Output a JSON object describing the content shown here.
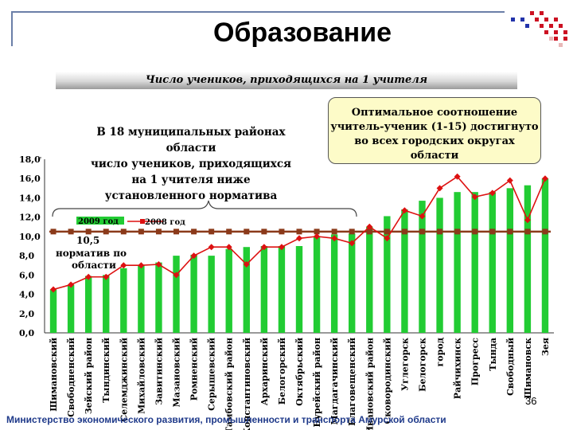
{
  "title": "Образование",
  "subtitle": "Число учеников, приходящихся на 1 учителя",
  "note_left": [
    "В 18 муниципальных районах области",
    "число учеников, приходящихся",
    "на 1 учителя ниже",
    "установленного норматива"
  ],
  "callout": [
    "Оптимальное соотношение",
    "учитель-ученик (1-15) достигнуто",
    "во всех городских округах области"
  ],
  "footer": "Министерство экономического развития, промышленности и транспорта Амурской области",
  "page_number": "36",
  "colors": {
    "bar": "#22cc33",
    "line": "#dd1111",
    "norm": "#8b3a1a",
    "callout_bg": "#fdfbc8",
    "footer": "#1f3a8a"
  },
  "chart_data": {
    "type": "bar",
    "ylim": [
      0,
      18
    ],
    "yticks": [
      "0,0",
      "2,0",
      "4,0",
      "6,0",
      "8,0",
      "10,0",
      "12,0",
      "14,0",
      "16,0",
      "18,0"
    ],
    "legend": {
      "bar_label": "2009 год",
      "line_label": "2008 год"
    },
    "norm": {
      "value": 10.5,
      "label_value": "10,5",
      "label_text": [
        "норматив по",
        "области"
      ]
    },
    "categories": [
      "Шимановский",
      "Свободненский",
      "Зейский район",
      "Тындинский",
      "Селемджинский",
      "Михайловский",
      "Завитинский",
      "Мазановский",
      "Ромненский",
      "Серышевский",
      "Тамбовский район",
      "Константиновский",
      "Архаринский",
      "Белогорский",
      "Октябрьский",
      "Бурейский район",
      "Магдагачинский",
      "Благовещенский",
      "Ивановский район",
      "Сковородинский",
      "Углегорск",
      "Белогорск",
      "город",
      "Райчихинск",
      "Прогресс",
      "Тында",
      "Свободный",
      "Шимановск",
      "Зея"
    ],
    "series": [
      {
        "name": "2009 год",
        "type": "bar",
        "values": [
          4.5,
          5.0,
          5.9,
          6.0,
          6.7,
          7.0,
          7.3,
          8.0,
          8.1,
          8.0,
          8.7,
          8.9,
          9.0,
          9.0,
          9.0,
          10.0,
          10.2,
          10.3,
          11.0,
          12.1,
          12.8,
          13.7,
          14.0,
          14.6,
          14.6,
          14.6,
          15.0,
          15.3,
          16.0
        ]
      },
      {
        "name": "2008 год",
        "type": "line",
        "values": [
          4.5,
          5.0,
          5.8,
          5.8,
          7.0,
          7.0,
          7.1,
          6.0,
          8.0,
          8.9,
          8.9,
          7.1,
          8.9,
          8.9,
          9.8,
          10.0,
          9.8,
          9.3,
          11.0,
          9.8,
          12.7,
          12.1,
          15.0,
          16.2,
          14.1,
          14.5,
          15.8,
          11.7,
          16.0
        ]
      }
    ]
  }
}
